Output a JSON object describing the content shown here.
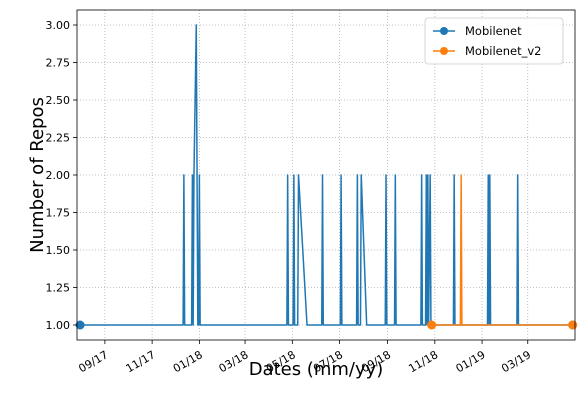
{
  "chart_data": {
    "type": "line",
    "title": "",
    "xlabel": "Dates (mm/yy)",
    "ylabel": "Number of Repos",
    "x_ticks": [
      "09/17",
      "11/17",
      "01/18",
      "03/18",
      "05/18",
      "07/18",
      "09/18",
      "11/18",
      "01/19",
      "03/19"
    ],
    "x_tick_dates": [
      "2017-09-01",
      "2017-11-01",
      "2018-01-01",
      "2018-03-01",
      "2018-05-01",
      "2018-07-01",
      "2018-09-01",
      "2018-11-01",
      "2019-01-01",
      "2019-03-01"
    ],
    "xlim": [
      "2017-07-27",
      "2019-05-01"
    ],
    "ylim": [
      0.9,
      3.1
    ],
    "y_ticks": [
      "1.00",
      "1.25",
      "1.50",
      "1.75",
      "2.00",
      "2.25",
      "2.50",
      "2.75",
      "3.00"
    ],
    "y_tick_values": [
      1.0,
      1.25,
      1.5,
      1.75,
      2.0,
      2.25,
      2.5,
      2.75,
      3.0
    ],
    "grid": true,
    "legend_position": "top-right",
    "series": [
      {
        "name": "Mobilenet",
        "color": "#1f77b4",
        "marker": "circle",
        "points": [
          [
            "2017-07-31",
            1
          ],
          [
            "2017-12-11",
            1
          ],
          [
            "2017-12-12",
            2
          ],
          [
            "2017-12-13",
            1
          ],
          [
            "2017-12-22",
            1
          ],
          [
            "2017-12-23",
            2
          ],
          [
            "2017-12-24",
            1
          ],
          [
            "2017-12-25",
            2
          ],
          [
            "2017-12-28",
            3
          ],
          [
            "2017-12-30",
            1
          ],
          [
            "2017-12-31",
            1
          ],
          [
            "2018-01-01",
            2
          ],
          [
            "2018-01-02",
            1
          ],
          [
            "2018-04-24",
            1
          ],
          [
            "2018-04-25",
            2
          ],
          [
            "2018-04-26",
            1
          ],
          [
            "2018-05-02",
            1
          ],
          [
            "2018-05-03",
            2
          ],
          [
            "2018-05-04",
            1
          ],
          [
            "2018-05-08",
            1
          ],
          [
            "2018-05-09",
            2
          ],
          [
            "2018-05-20",
            1
          ],
          [
            "2018-06-08",
            1
          ],
          [
            "2018-06-09",
            2
          ],
          [
            "2018-06-10",
            1
          ],
          [
            "2018-07-02",
            1
          ],
          [
            "2018-07-03",
            2
          ],
          [
            "2018-07-04",
            1
          ],
          [
            "2018-07-23",
            1
          ],
          [
            "2018-07-24",
            2
          ],
          [
            "2018-07-25",
            1
          ],
          [
            "2018-07-28",
            1
          ],
          [
            "2018-07-29",
            2
          ],
          [
            "2018-08-05",
            1
          ],
          [
            "2018-08-29",
            1
          ],
          [
            "2018-08-30",
            2
          ],
          [
            "2018-08-31",
            1
          ],
          [
            "2018-09-10",
            1
          ],
          [
            "2018-09-11",
            2
          ],
          [
            "2018-09-12",
            1
          ],
          [
            "2018-10-14",
            1
          ],
          [
            "2018-10-15",
            2
          ],
          [
            "2018-10-16",
            1
          ],
          [
            "2018-10-20",
            1
          ],
          [
            "2018-10-21",
            2
          ],
          [
            "2018-10-22",
            1
          ],
          [
            "2018-10-23",
            2
          ],
          [
            "2018-10-24",
            1
          ],
          [
            "2018-10-26",
            2
          ],
          [
            "2018-10-27",
            1
          ],
          [
            "2018-11-25",
            1
          ],
          [
            "2018-11-26",
            2
          ],
          [
            "2018-11-27",
            1
          ],
          [
            "2019-01-08",
            1
          ],
          [
            "2019-01-09",
            2
          ],
          [
            "2019-01-10",
            1
          ],
          [
            "2019-01-11",
            2
          ],
          [
            "2019-01-12",
            1
          ],
          [
            "2019-02-15",
            1
          ],
          [
            "2019-02-16",
            2
          ],
          [
            "2019-02-17",
            1
          ],
          [
            "2019-04-28",
            1
          ]
        ],
        "marked_points": [
          [
            "2017-07-31",
            1
          ],
          [
            "2019-04-28",
            1
          ]
        ]
      },
      {
        "name": "Mobilenet_v2",
        "color": "#ff7f0e",
        "marker": "circle",
        "points": [
          [
            "2018-10-28",
            1
          ],
          [
            "2018-12-04",
            1
          ],
          [
            "2018-12-05",
            2
          ],
          [
            "2018-12-06",
            1
          ],
          [
            "2019-04-28",
            1
          ]
        ],
        "marked_points": [
          [
            "2018-10-28",
            1
          ],
          [
            "2019-04-28",
            1
          ]
        ]
      }
    ]
  }
}
